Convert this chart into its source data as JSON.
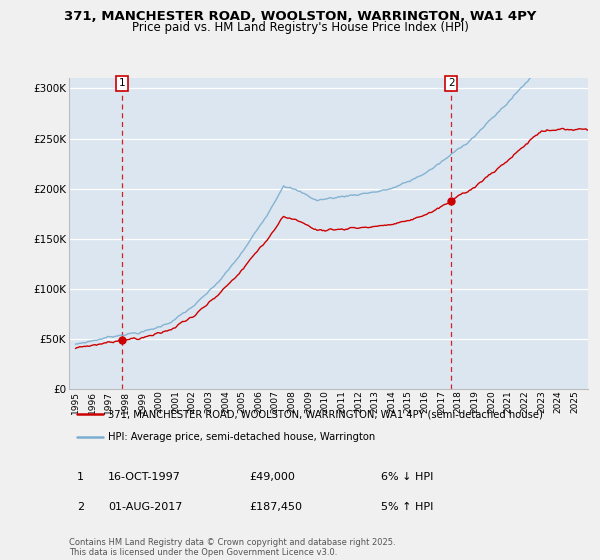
{
  "title_line1": "371, MANCHESTER ROAD, WOOLSTON, WARRINGTON, WA1 4PY",
  "title_line2": "Price paid vs. HM Land Registry's House Price Index (HPI)",
  "background_color": "#dce6f0",
  "plot_bg_color": "#dce6f0",
  "legend_label_red": "371, MANCHESTER ROAD, WOOLSTON, WARRINGTON, WA1 4PY (semi-detached house)",
  "legend_label_blue": "HPI: Average price, semi-detached house, Warrington",
  "annotation1_label": "1",
  "annotation1_date": "16-OCT-1997",
  "annotation1_price": "£49,000",
  "annotation1_hpi": "6% ↓ HPI",
  "annotation2_label": "2",
  "annotation2_date": "01-AUG-2017",
  "annotation2_price": "£187,450",
  "annotation2_hpi": "5% ↑ HPI",
  "footnote": "Contains HM Land Registry data © Crown copyright and database right 2025.\nThis data is licensed under the Open Government Licence v3.0.",
  "ylim": [
    0,
    310000
  ],
  "yticks": [
    0,
    50000,
    100000,
    150000,
    200000,
    250000,
    300000
  ],
  "point1_year": 1997.79,
  "point1_price": 49000,
  "point2_year": 2017.58,
  "point2_price": 187450,
  "red_color": "#cc0000",
  "blue_color": "#7aadcf",
  "grid_color": "#ffffff",
  "fig_bg": "#f0f0f0"
}
